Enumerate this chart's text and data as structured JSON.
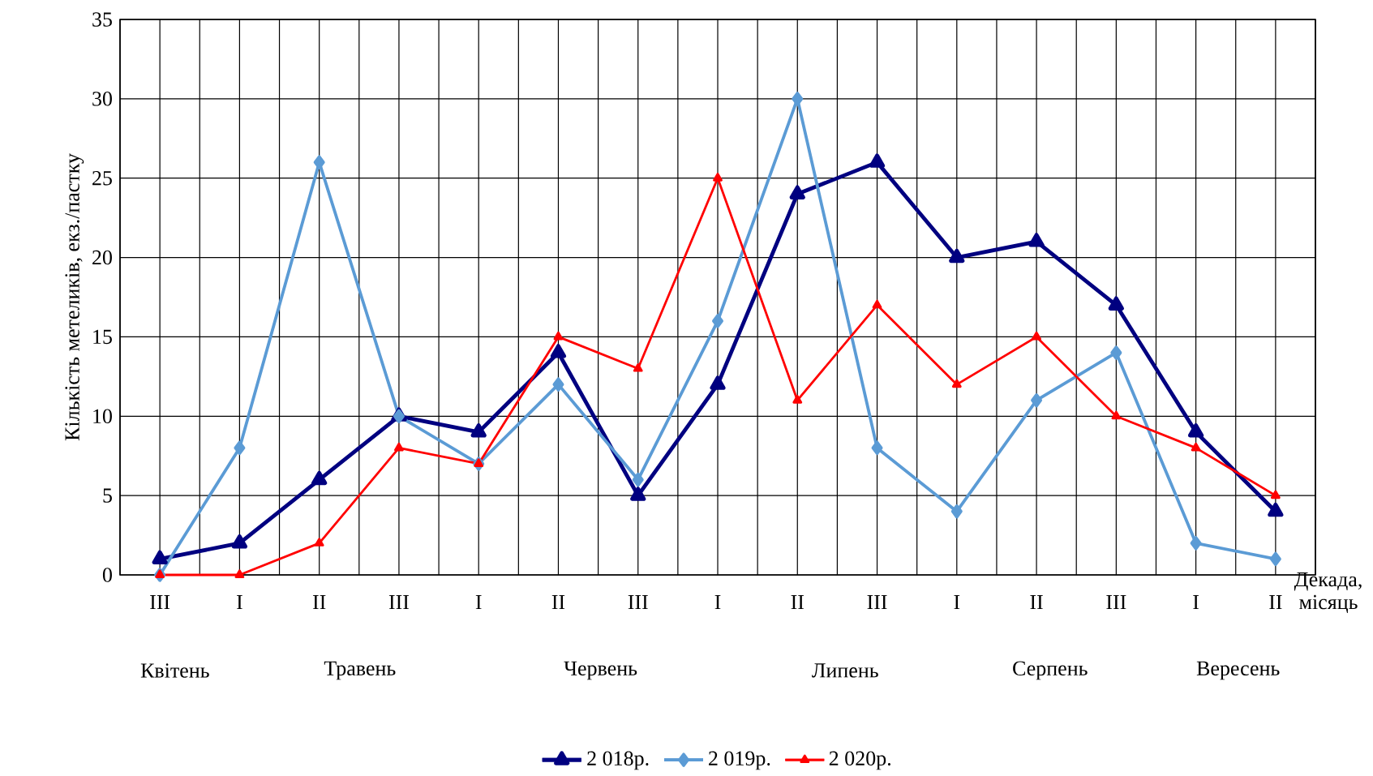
{
  "chart_data": {
    "type": "line",
    "categories": [
      "III",
      "I",
      "II",
      "III",
      "I",
      "II",
      "III",
      "I",
      "II",
      "III",
      "I",
      "II",
      "III",
      "I",
      "II"
    ],
    "series": [
      {
        "name": "2 018р.",
        "color": "#000080",
        "marker": "triangle",
        "values": [
          1,
          2,
          6,
          10,
          9,
          14,
          5,
          12,
          24,
          26,
          20,
          21,
          17,
          9,
          4
        ]
      },
      {
        "name": "2 019р.",
        "color": "#5b9bd5",
        "marker": "diamond",
        "values": [
          0,
          8,
          26,
          10,
          7,
          12,
          6,
          16,
          30,
          8,
          4,
          11,
          14,
          2,
          1
        ]
      },
      {
        "name": "2 020р.",
        "color": "#ff0000",
        "marker": "triangle",
        "values": [
          0,
          0,
          2,
          8,
          7,
          15,
          13,
          25,
          11,
          17,
          12,
          15,
          10,
          8,
          5
        ]
      }
    ],
    "xlabel": "Декада, місяць",
    "ylabel": "Кількість  метеликів, екз./пастку",
    "ylim": [
      0,
      35
    ],
    "yticks": [
      0,
      5,
      10,
      15,
      20,
      25,
      30,
      35
    ],
    "annotations": [
      "Квітень",
      "Травень",
      "Червень",
      "Липень",
      "Серпень",
      "Вересень"
    ],
    "grid": true,
    "legend": "bottom",
    "line_style": "solid"
  }
}
